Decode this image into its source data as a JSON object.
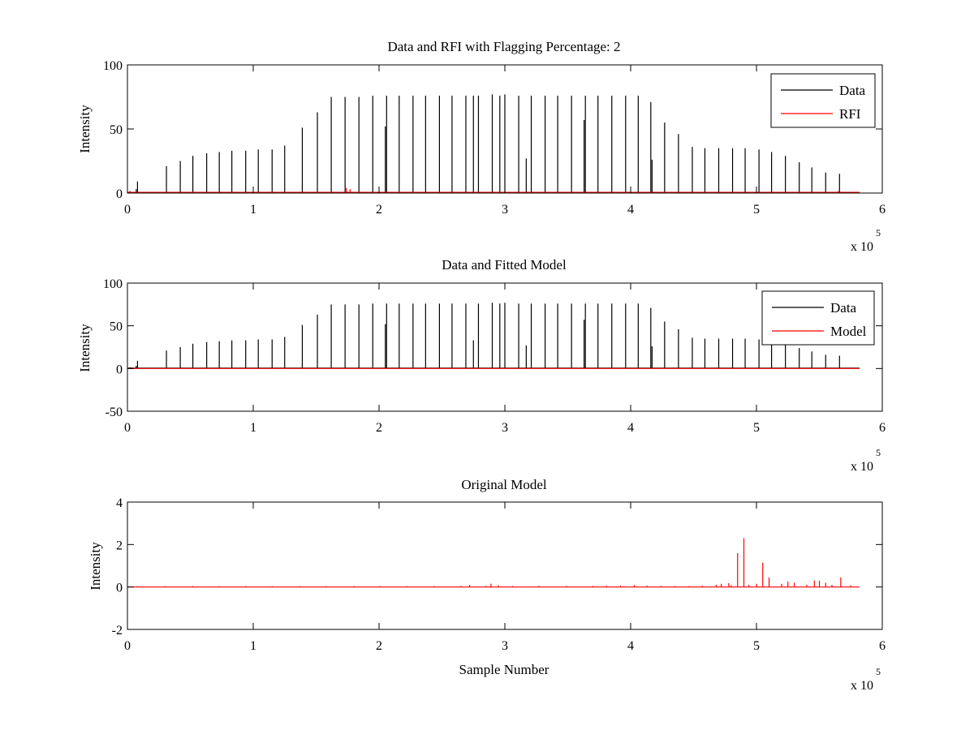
{
  "figure": {
    "background": "#ffffff"
  },
  "colors": {
    "data": "#000000",
    "rfi": "#ff0000",
    "model": "#ff0000",
    "axis": "#000000"
  },
  "chart_data": [
    {
      "type": "line",
      "title": "Data and RFI with Flagging Percentage: 2",
      "xlabel": "",
      "ylabel": "Intensity",
      "xlim": [
        0,
        600000
      ],
      "ylim": [
        0,
        100
      ],
      "xticks": [
        0,
        1,
        2,
        3,
        4,
        5,
        6
      ],
      "yticks": [
        0,
        50,
        100
      ],
      "x_exponent_label": "x 10",
      "x_exponent": "5",
      "grid": false,
      "legend": {
        "position": "top-right",
        "entries": [
          "Data",
          "RFI"
        ]
      },
      "series": [
        {
          "name": "Data",
          "color": "#000000",
          "baseline": 0.5,
          "spikes": [
            [
              2000,
              1.5
            ],
            [
              7000,
              3
            ],
            [
              8000,
              9
            ],
            [
              31000,
              21
            ],
            [
              42000,
              25
            ],
            [
              52000,
              29
            ],
            [
              63000,
              31
            ],
            [
              73000,
              32
            ],
            [
              83000,
              33
            ],
            [
              94000,
              33
            ],
            [
              104000,
              34
            ],
            [
              115000,
              34
            ],
            [
              125000,
              37
            ],
            [
              139000,
              51
            ],
            [
              151000,
              63
            ],
            [
              162000,
              75
            ],
            [
              173000,
              75
            ],
            [
              184000,
              75
            ],
            [
              195000,
              76
            ],
            [
              205000,
              52
            ],
            [
              206000,
              76
            ],
            [
              216000,
              76
            ],
            [
              227000,
              76
            ],
            [
              237000,
              76
            ],
            [
              248000,
              76
            ],
            [
              258000,
              76
            ],
            [
              269000,
              76
            ],
            [
              275000,
              76
            ],
            [
              279000,
              76
            ],
            [
              290000,
              77
            ],
            [
              296000,
              76
            ],
            [
              300000,
              77
            ],
            [
              311000,
              76
            ],
            [
              317000,
              27
            ],
            [
              321000,
              76
            ],
            [
              332000,
              76
            ],
            [
              342000,
              76
            ],
            [
              353000,
              76
            ],
            [
              363000,
              57
            ],
            [
              364000,
              76
            ],
            [
              374000,
              76
            ],
            [
              385000,
              76
            ],
            [
              396000,
              76
            ],
            [
              406000,
              76
            ],
            [
              416000,
              71
            ],
            [
              417000,
              26
            ],
            [
              427000,
              55
            ],
            [
              438000,
              46
            ],
            [
              449000,
              36
            ],
            [
              459000,
              35
            ],
            [
              470000,
              35
            ],
            [
              481000,
              35
            ],
            [
              491000,
              35
            ],
            [
              502000,
              34
            ],
            [
              512000,
              32
            ],
            [
              523000,
              29
            ],
            [
              534000,
              24
            ],
            [
              544000,
              20
            ],
            [
              555000,
              16
            ],
            [
              566000,
              15
            ]
          ]
        },
        {
          "name": "RFI",
          "color": "#ff0000",
          "baseline": 0.5,
          "spikes": [
            [
              174000,
              4
            ],
            [
              177000,
              3
            ],
            [
              565000,
              1.5
            ]
          ]
        }
      ]
    },
    {
      "type": "line",
      "title": "Data and Fitted Model",
      "xlabel": "",
      "ylabel": "Intensity",
      "xlim": [
        0,
        600000
      ],
      "ylim": [
        -50,
        100
      ],
      "xticks": [
        0,
        1,
        2,
        3,
        4,
        5,
        6
      ],
      "yticks": [
        -50,
        0,
        50,
        100
      ],
      "x_exponent_label": "x 10",
      "x_exponent": "5",
      "grid": false,
      "legend": {
        "position": "top-right",
        "entries": [
          "Data",
          "Model"
        ]
      },
      "series": [
        {
          "name": "Data",
          "color": "#000000",
          "baseline": 0.5,
          "spikes": [
            [
              2000,
              1.5
            ],
            [
              7000,
              3
            ],
            [
              8000,
              9
            ],
            [
              31000,
              21
            ],
            [
              42000,
              25
            ],
            [
              52000,
              29
            ],
            [
              63000,
              31
            ],
            [
              73000,
              32
            ],
            [
              83000,
              33
            ],
            [
              94000,
              33
            ],
            [
              104000,
              34
            ],
            [
              115000,
              34
            ],
            [
              125000,
              37
            ],
            [
              139000,
              51
            ],
            [
              151000,
              63
            ],
            [
              162000,
              75
            ],
            [
              173000,
              75
            ],
            [
              184000,
              75
            ],
            [
              195000,
              76
            ],
            [
              205000,
              52
            ],
            [
              206000,
              76
            ],
            [
              216000,
              76
            ],
            [
              227000,
              76
            ],
            [
              237000,
              76
            ],
            [
              248000,
              76
            ],
            [
              258000,
              76
            ],
            [
              269000,
              76
            ],
            [
              275000,
              33
            ],
            [
              279000,
              76
            ],
            [
              290000,
              77
            ],
            [
              296000,
              76
            ],
            [
              300000,
              77
            ],
            [
              311000,
              76
            ],
            [
              317000,
              27
            ],
            [
              321000,
              76
            ],
            [
              332000,
              76
            ],
            [
              342000,
              76
            ],
            [
              353000,
              76
            ],
            [
              363000,
              57
            ],
            [
              364000,
              76
            ],
            [
              374000,
              76
            ],
            [
              385000,
              76
            ],
            [
              396000,
              76
            ],
            [
              406000,
              76
            ],
            [
              416000,
              71
            ],
            [
              417000,
              26
            ],
            [
              427000,
              55
            ],
            [
              438000,
              46
            ],
            [
              449000,
              36
            ],
            [
              459000,
              35
            ],
            [
              470000,
              35
            ],
            [
              481000,
              35
            ],
            [
              491000,
              35
            ],
            [
              502000,
              34
            ],
            [
              512000,
              32
            ],
            [
              523000,
              29
            ],
            [
              534000,
              24
            ],
            [
              544000,
              20
            ],
            [
              555000,
              16
            ],
            [
              566000,
              15
            ]
          ]
        },
        {
          "name": "Model",
          "color": "#ff0000",
          "baseline": 0,
          "x_end": 582000,
          "spikes": []
        }
      ]
    },
    {
      "type": "line",
      "title": "Original Model",
      "xlabel": "Sample Number",
      "ylabel": "Intensity",
      "xlim": [
        0,
        600000
      ],
      "ylim": [
        -2,
        4
      ],
      "xticks": [
        0,
        1,
        2,
        3,
        4,
        5,
        6
      ],
      "yticks": [
        -2,
        0,
        2,
        4
      ],
      "x_exponent_label": "x 10",
      "x_exponent": "5",
      "grid": false,
      "legend": null,
      "series": [
        {
          "name": "",
          "color": "#ff0000",
          "baseline": 0,
          "x_end": 582000,
          "spikes": [
            [
              8000,
              0.04
            ],
            [
              30000,
              0.04
            ],
            [
              52000,
              0.04
            ],
            [
              73000,
              0.04
            ],
            [
              94000,
              0.04
            ],
            [
              115000,
              0.04
            ],
            [
              137000,
              0.04
            ],
            [
              158000,
              0.04
            ],
            [
              180000,
              0.04
            ],
            [
              201000,
              0.04
            ],
            [
              222000,
              0.04
            ],
            [
              244000,
              0.04
            ],
            [
              265000,
              0.05
            ],
            [
              272000,
              0.1
            ],
            [
              285000,
              0.05
            ],
            [
              289000,
              0.15
            ],
            [
              295000,
              0.08
            ],
            [
              306000,
              0.05
            ],
            [
              327000,
              0.05
            ],
            [
              349000,
              0.05
            ],
            [
              370000,
              0.05
            ],
            [
              381000,
              0.06
            ],
            [
              392000,
              0.07
            ],
            [
              403000,
              0.09
            ],
            [
              413000,
              0.06
            ],
            [
              424000,
              0.05
            ],
            [
              435000,
              0.04
            ],
            [
              446000,
              0.04
            ],
            [
              457000,
              0.06
            ],
            [
              468000,
              0.1
            ],
            [
              472000,
              0.15
            ],
            [
              478000,
              0.18
            ],
            [
              480000,
              0.08
            ],
            [
              485000,
              1.6
            ],
            [
              490000,
              2.3
            ],
            [
              494000,
              0.1
            ],
            [
              500000,
              0.15
            ],
            [
              505000,
              1.15
            ],
            [
              510000,
              0.45
            ],
            [
              520000,
              0.15
            ],
            [
              525000,
              0.25
            ],
            [
              530000,
              0.2
            ],
            [
              540000,
              0.1
            ],
            [
              546000,
              0.3
            ],
            [
              550000,
              0.3
            ],
            [
              555000,
              0.2
            ],
            [
              560000,
              0.1
            ],
            [
              567000,
              0.45
            ],
            [
              575000,
              0.08
            ]
          ]
        }
      ]
    }
  ]
}
